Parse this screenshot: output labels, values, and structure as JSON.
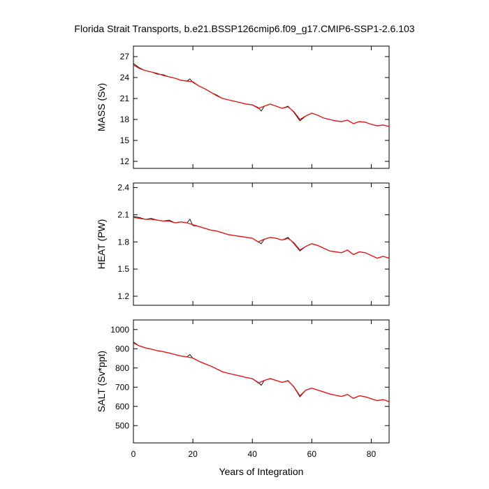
{
  "title": "Florida Strait Transports, b.e21.BSSP126cmip6.f09_g17.CMIP6-SSP1-2.6.103",
  "chart_data": [
    {
      "type": "line",
      "title": "",
      "xlabel": "",
      "ylabel": "MASS (Sv)",
      "xlim": [
        0,
        86
      ],
      "ylim": [
        11,
        28.5
      ],
      "yticks": [
        12,
        15,
        18,
        21,
        24,
        27
      ],
      "ytick_labels": [
        "12",
        "15",
        "18",
        "21",
        "24",
        "27"
      ],
      "xticks": [
        0,
        20,
        40,
        60,
        80
      ],
      "xtick_labels": [],
      "series": [
        {
          "role": "monthly",
          "color": "#000000",
          "x": [
            0,
            2,
            4,
            6,
            8,
            10,
            12,
            14,
            16,
            18,
            19,
            20,
            22,
            24,
            26,
            28,
            30,
            32,
            34,
            36,
            38,
            40,
            42,
            43,
            44,
            46,
            48,
            50,
            52,
            54,
            56,
            58,
            60,
            62,
            64,
            66,
            68,
            70,
            72,
            74,
            76,
            78,
            80,
            82,
            84,
            86
          ],
          "values": [
            26.0,
            25.4,
            25.0,
            24.8,
            24.5,
            24.4,
            24.1,
            23.9,
            23.6,
            23.5,
            23.8,
            23.3,
            22.8,
            22.4,
            21.9,
            21.5,
            21.0,
            20.8,
            20.6,
            20.4,
            20.2,
            20.1,
            19.7,
            19.2,
            19.9,
            20.2,
            19.9,
            19.6,
            19.9,
            19.0,
            17.8,
            18.5,
            18.9,
            18.6,
            18.2,
            18.0,
            17.8,
            17.7,
            17.9,
            17.4,
            17.7,
            17.6,
            17.3,
            17.1,
            17.2,
            17.0
          ]
        },
        {
          "role": "annual-mean",
          "color": "#e41a1c",
          "x": [
            0,
            2,
            4,
            6,
            8,
            10,
            12,
            14,
            16,
            18,
            20,
            22,
            24,
            26,
            28,
            30,
            32,
            34,
            36,
            38,
            40,
            42,
            44,
            46,
            48,
            50,
            52,
            54,
            56,
            58,
            60,
            62,
            64,
            66,
            68,
            70,
            72,
            74,
            76,
            78,
            80,
            82,
            84,
            86
          ],
          "values": [
            25.8,
            25.3,
            25.0,
            24.8,
            24.6,
            24.3,
            24.1,
            23.9,
            23.6,
            23.5,
            23.4,
            22.8,
            22.4,
            21.9,
            21.4,
            21.0,
            20.8,
            20.6,
            20.4,
            20.2,
            20.1,
            19.6,
            19.9,
            20.2,
            19.9,
            19.6,
            19.8,
            19.1,
            18.0,
            18.5,
            18.9,
            18.6,
            18.2,
            18.0,
            17.8,
            17.7,
            17.9,
            17.4,
            17.7,
            17.6,
            17.3,
            17.1,
            17.2,
            17.0
          ]
        }
      ]
    },
    {
      "type": "line",
      "title": "",
      "xlabel": "",
      "ylabel": "HEAT (PW)",
      "xlim": [
        0,
        86
      ],
      "ylim": [
        1.1,
        2.45
      ],
      "yticks": [
        1.2,
        1.5,
        1.8,
        2.1,
        2.4
      ],
      "ytick_labels": [
        "1.2",
        "1.5",
        "1.8",
        "2.1",
        "2.4"
      ],
      "xticks": [
        0,
        20,
        40,
        60,
        80
      ],
      "xtick_labels": [],
      "series": [
        {
          "role": "monthly",
          "color": "#000000",
          "x": [
            0,
            2,
            4,
            6,
            8,
            10,
            12,
            14,
            16,
            18,
            19,
            20,
            22,
            24,
            26,
            28,
            30,
            32,
            34,
            36,
            38,
            40,
            42,
            43,
            44,
            46,
            48,
            50,
            52,
            54,
            56,
            58,
            60,
            62,
            64,
            66,
            68,
            70,
            72,
            74,
            76,
            78,
            80,
            82,
            84,
            86
          ],
          "values": [
            2.08,
            2.07,
            2.05,
            2.06,
            2.04,
            2.03,
            2.04,
            2.01,
            2.02,
            2.01,
            2.05,
            1.98,
            1.97,
            1.95,
            1.93,
            1.92,
            1.9,
            1.88,
            1.87,
            1.86,
            1.85,
            1.84,
            1.8,
            1.78,
            1.83,
            1.85,
            1.84,
            1.82,
            1.85,
            1.78,
            1.7,
            1.75,
            1.78,
            1.76,
            1.73,
            1.7,
            1.69,
            1.68,
            1.71,
            1.66,
            1.69,
            1.68,
            1.65,
            1.62,
            1.64,
            1.62
          ]
        },
        {
          "role": "annual-mean",
          "color": "#e41a1c",
          "x": [
            0,
            2,
            4,
            6,
            8,
            10,
            12,
            14,
            16,
            18,
            20,
            22,
            24,
            26,
            28,
            30,
            32,
            34,
            36,
            38,
            40,
            42,
            44,
            46,
            48,
            50,
            52,
            54,
            56,
            58,
            60,
            62,
            64,
            66,
            68,
            70,
            72,
            74,
            76,
            78,
            80,
            82,
            84,
            86
          ],
          "values": [
            2.07,
            2.06,
            2.05,
            2.05,
            2.04,
            2.03,
            2.03,
            2.01,
            2.02,
            2.01,
            1.99,
            1.97,
            1.95,
            1.93,
            1.92,
            1.9,
            1.88,
            1.87,
            1.86,
            1.85,
            1.84,
            1.8,
            1.83,
            1.85,
            1.84,
            1.82,
            1.84,
            1.79,
            1.71,
            1.75,
            1.78,
            1.76,
            1.73,
            1.7,
            1.69,
            1.68,
            1.71,
            1.66,
            1.69,
            1.68,
            1.65,
            1.62,
            1.64,
            1.62
          ]
        }
      ]
    },
    {
      "type": "line",
      "title": "",
      "xlabel": "Years of Integration",
      "ylabel": "SALT (Sv*ppt)",
      "xlim": [
        0,
        86
      ],
      "ylim": [
        410,
        1050
      ],
      "yticks": [
        500,
        600,
        700,
        800,
        900,
        1000
      ],
      "ytick_labels": [
        "500",
        "600",
        "700",
        "800",
        "900",
        "1000"
      ],
      "xticks": [
        0,
        20,
        40,
        60,
        80
      ],
      "xtick_labels": [
        "0",
        "20",
        "40",
        "60",
        "80"
      ],
      "series": [
        {
          "role": "monthly",
          "color": "#000000",
          "x": [
            0,
            2,
            4,
            6,
            8,
            10,
            12,
            14,
            16,
            18,
            19,
            20,
            22,
            24,
            26,
            28,
            30,
            32,
            34,
            36,
            38,
            40,
            42,
            43,
            44,
            46,
            48,
            50,
            52,
            54,
            56,
            58,
            60,
            62,
            64,
            66,
            68,
            70,
            72,
            74,
            76,
            78,
            80,
            82,
            84,
            86
          ],
          "values": [
            935,
            915,
            905,
            898,
            890,
            885,
            878,
            870,
            862,
            858,
            870,
            850,
            835,
            822,
            810,
            795,
            780,
            772,
            765,
            758,
            750,
            745,
            725,
            710,
            735,
            745,
            735,
            725,
            735,
            700,
            650,
            685,
            695,
            685,
            675,
            665,
            658,
            652,
            662,
            642,
            655,
            650,
            640,
            630,
            635,
            625
          ]
        },
        {
          "role": "annual-mean",
          "color": "#e41a1c",
          "x": [
            0,
            2,
            4,
            6,
            8,
            10,
            12,
            14,
            16,
            18,
            20,
            22,
            24,
            26,
            28,
            30,
            32,
            34,
            36,
            38,
            40,
            42,
            44,
            46,
            48,
            50,
            52,
            54,
            56,
            58,
            60,
            62,
            64,
            66,
            68,
            70,
            72,
            74,
            76,
            78,
            80,
            82,
            84,
            86
          ],
          "values": [
            930,
            915,
            905,
            898,
            890,
            885,
            878,
            870,
            862,
            858,
            852,
            835,
            822,
            810,
            795,
            780,
            772,
            765,
            758,
            750,
            745,
            722,
            735,
            745,
            735,
            725,
            733,
            702,
            655,
            685,
            695,
            685,
            675,
            665,
            658,
            652,
            662,
            642,
            655,
            650,
            640,
            630,
            635,
            625
          ]
        }
      ]
    }
  ]
}
